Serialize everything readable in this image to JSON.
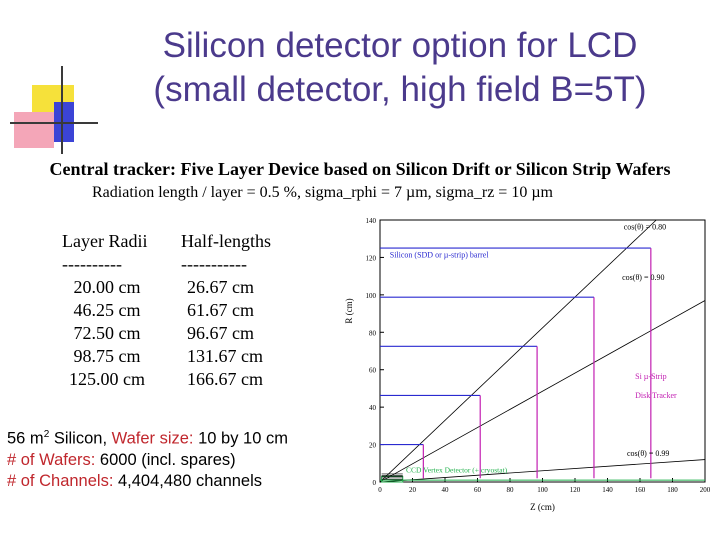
{
  "title_line1": "Silicon detector option for LCD",
  "title_line2": "(small detector, high field B=5T)",
  "subtitle": "Central tracker: Five Layer Device based on Silicon Drift or Silicon Strip Wafers",
  "subline": "Radiation length / layer = 0.5 %, sigma_rphi = 7 µm, sigma_rz = 10 µm",
  "table": {
    "col1_header": "Layer Radii",
    "col2_header": "Half-lengths",
    "col1_dash": "----------",
    "col2_dash": "-----------",
    "radii": [
      "20.00 cm",
      "46.25 cm",
      "72.50 cm",
      "98.75 cm",
      "125.00 cm"
    ],
    "half_lengths": [
      "26.67 cm",
      "61.67 cm",
      "96.67 cm",
      "131.67 cm",
      "166.67 cm"
    ]
  },
  "summary": {
    "line1_a": "56 m",
    "line1_sup": "2",
    "line1_b": " Silicon, ",
    "line1_c": "Wafer size:",
    "line1_d": " 10 by 10 cm",
    "line2_a": "# of Wafers:",
    "line2_b": " 6000 (incl. spares)",
    "line3_a": "# of Channels:",
    "line3_b": " 4,404,480 channels"
  },
  "colors": {
    "title": "#4b3a8c",
    "emph_red": "#c0272d",
    "deco_yellow": "#f6e13a",
    "deco_pink": "#f4a6b8",
    "deco_blue": "#3b44d6",
    "plot_blue": "#2a2ad0",
    "plot_magenta": "#c21fb2",
    "plot_green": "#22b14c"
  },
  "chart_data": {
    "type": "line",
    "xlabel": "Z (cm)",
    "ylabel": "R (cm)",
    "xlim": [
      0,
      200
    ],
    "ylim": [
      0,
      140
    ],
    "x_ticks": [
      "0",
      "20",
      "40",
      "60",
      "80",
      "100",
      "120",
      "140",
      "160",
      "180",
      "200"
    ],
    "y_ticks": [
      "0",
      "20",
      "40",
      "60",
      "80",
      "100",
      "120",
      "140"
    ],
    "barrel_layers": [
      {
        "r": 20.0,
        "half_length": 26.67
      },
      {
        "r": 46.25,
        "half_length": 61.67
      },
      {
        "r": 72.5,
        "half_length": 96.67
      },
      {
        "r": 98.75,
        "half_length": 131.67
      },
      {
        "r": 125.0,
        "half_length": 166.67
      }
    ],
    "disks": [
      {
        "z": 26.67,
        "r_min": 2,
        "r_max": 20.0
      },
      {
        "z": 61.67,
        "r_min": 2,
        "r_max": 46.25
      },
      {
        "z": 96.67,
        "r_min": 2,
        "r_max": 72.5
      },
      {
        "z": 131.67,
        "r_min": 2,
        "r_max": 98.75
      },
      {
        "z": 166.67,
        "r_min": 2,
        "r_max": 125.0
      }
    ],
    "cos_theta_lines": [
      {
        "label": "cos(θ) = 0.80"
      },
      {
        "label": "cos(θ) = 0.90"
      },
      {
        "label": "cos(θ) = 0.99"
      }
    ],
    "annotations": {
      "barrel": "Silicon (SDD or µ-strip) barrel",
      "disk1": "Si µ-Strip",
      "disk2": "Disk Tracker",
      "vertex": "CCD Vertex Detector (+ cryostat)"
    }
  }
}
